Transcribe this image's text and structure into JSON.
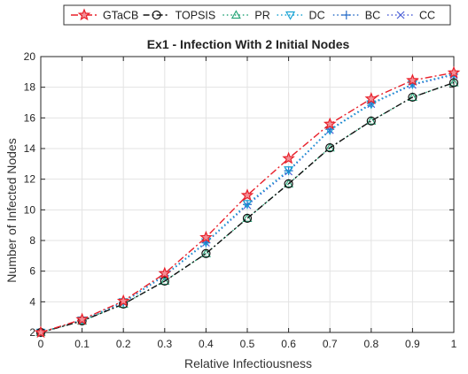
{
  "chart_data": {
    "type": "line",
    "title": "Ex1 - Infection With 2 Initial Nodes",
    "xlabel": "Relative Infectiousness",
    "ylabel": "Number of Infected Nodes",
    "xlim": [
      0,
      1
    ],
    "ylim": [
      2,
      20
    ],
    "xticks": [
      0,
      0.1,
      0.2,
      0.3,
      0.4,
      0.5,
      0.6,
      0.7,
      0.8,
      0.9,
      1
    ],
    "yticks": [
      2,
      4,
      6,
      8,
      10,
      12,
      14,
      16,
      18,
      20
    ],
    "xtick_labels": [
      "0",
      "0.1",
      "0.2",
      "0.3",
      "0.4",
      "0.5",
      "0.6",
      "0.7",
      "0.8",
      "0.9",
      "1"
    ],
    "ytick_labels": [
      "2",
      "4",
      "6",
      "8",
      "10",
      "12",
      "14",
      "16",
      "18",
      "20"
    ],
    "grid": true,
    "legend_position": "top",
    "x": [
      0,
      0.1,
      0.2,
      0.3,
      0.4,
      0.5,
      0.6,
      0.7,
      0.8,
      0.9,
      1
    ],
    "series": [
      {
        "name": "GTaCB",
        "color": "#e8202a",
        "dash": "8,3,2,3",
        "marker": "star",
        "fill": "#f28f96",
        "values": [
          2.0,
          2.85,
          4.05,
          5.85,
          8.2,
          10.95,
          13.35,
          15.6,
          17.25,
          18.45,
          18.95
        ]
      },
      {
        "name": "TOPSIS",
        "color": "#111111",
        "dash": "7,3,2,3",
        "marker": "circle",
        "fill": "none",
        "values": [
          2.0,
          2.75,
          3.85,
          5.35,
          7.15,
          9.45,
          11.7,
          14.05,
          15.8,
          17.35,
          18.3
        ]
      },
      {
        "name": "PR",
        "color": "#2aa67a",
        "dash": "1.5,3",
        "marker": "triangle",
        "fill": "none",
        "values": [
          2.0,
          2.75,
          3.85,
          5.35,
          7.15,
          9.45,
          11.7,
          14.05,
          15.8,
          17.35,
          18.3
        ]
      },
      {
        "name": "DC",
        "color": "#1aa3d4",
        "dash": "1.5,3",
        "marker": "triangle-down",
        "fill": "none",
        "values": [
          2.0,
          2.8,
          4.0,
          5.75,
          7.9,
          10.4,
          12.6,
          15.2,
          16.9,
          18.2,
          18.85
        ]
      },
      {
        "name": "BC",
        "color": "#2b6fc9",
        "dash": "1.5,3",
        "marker": "plus",
        "fill": "none",
        "values": [
          2.0,
          2.8,
          3.95,
          5.7,
          7.85,
          10.35,
          12.55,
          15.25,
          16.95,
          18.2,
          18.85
        ]
      },
      {
        "name": "CC",
        "color": "#4b5fd6",
        "dash": "1.5,3",
        "marker": "x",
        "fill": "none",
        "values": [
          2.0,
          2.8,
          3.95,
          5.7,
          7.85,
          10.3,
          12.5,
          15.2,
          16.9,
          18.15,
          18.8
        ]
      }
    ]
  }
}
